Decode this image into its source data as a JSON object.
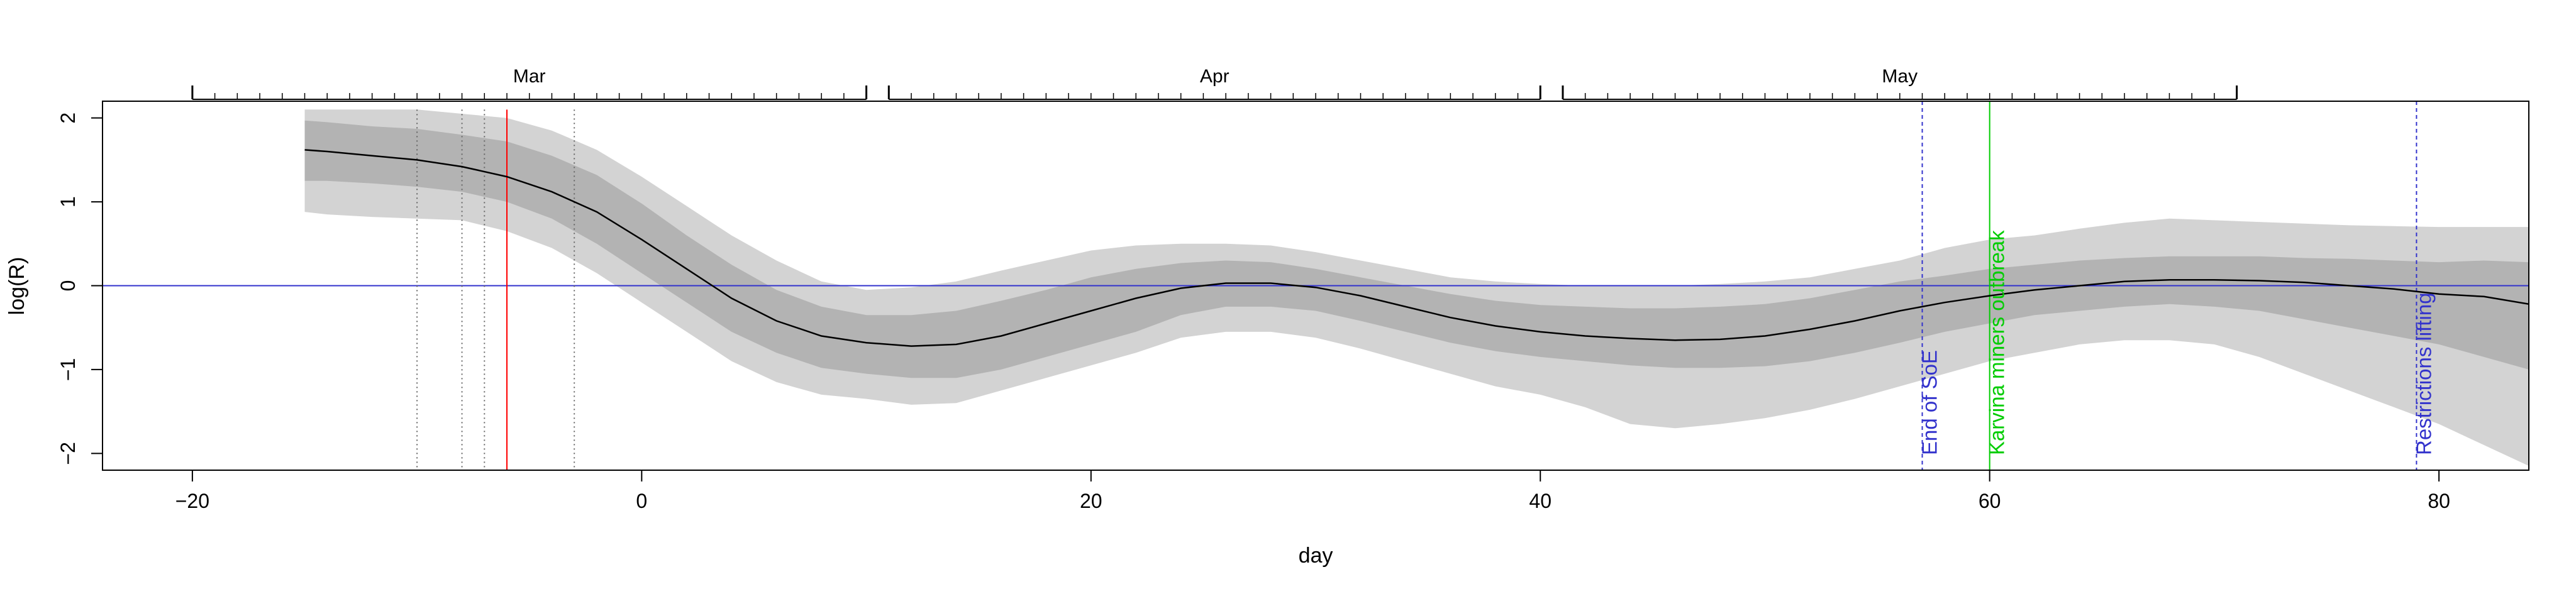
{
  "chart_data": {
    "type": "area",
    "xlabel": "day",
    "ylabel": "log(R)",
    "xlim": [
      -24,
      84
    ],
    "ylim": [
      -2.2,
      2.2
    ],
    "x_ticks": [
      -20,
      0,
      20,
      40,
      60,
      80
    ],
    "x_tick_labels": [
      "−20",
      "0",
      "20",
      "40",
      "60",
      "80"
    ],
    "y_ticks": [
      -2,
      -1,
      0,
      1,
      2
    ],
    "y_tick_labels": [
      "−2",
      "−1",
      "0",
      "1",
      "2"
    ],
    "top_axis": {
      "months": [
        {
          "label": "Mar",
          "start": -20,
          "end": 10
        },
        {
          "label": "Apr",
          "start": 11,
          "end": 40
        },
        {
          "label": "May",
          "start": 41,
          "end": 71
        }
      ]
    },
    "reference_line": {
      "y": 0,
      "color": "#3333cc"
    },
    "series": [
      {
        "x": [
          -15,
          -14,
          -12,
          -10,
          -8,
          -6,
          -4,
          -2,
          0,
          2,
          4,
          6,
          8,
          10,
          12,
          14,
          16,
          18,
          20,
          22,
          24,
          26,
          28,
          30,
          32,
          34,
          36,
          38,
          40,
          42,
          44,
          46,
          48,
          50,
          52,
          54,
          56,
          58,
          60,
          62,
          64,
          66,
          68,
          70,
          72,
          74,
          76,
          78,
          80,
          82,
          84
        ],
        "y": [
          1.62,
          1.6,
          1.55,
          1.5,
          1.42,
          1.3,
          1.12,
          0.88,
          0.55,
          0.2,
          -0.15,
          -0.42,
          -0.6,
          -0.68,
          -0.72,
          -0.7,
          -0.6,
          -0.45,
          -0.3,
          -0.15,
          -0.03,
          0.03,
          0.03,
          -0.02,
          -0.12,
          -0.25,
          -0.38,
          -0.48,
          -0.55,
          -0.6,
          -0.63,
          -0.65,
          -0.64,
          -0.6,
          -0.52,
          -0.42,
          -0.3,
          -0.2,
          -0.12,
          -0.05,
          0.0,
          0.05,
          0.07,
          0.07,
          0.06,
          0.04,
          0.0,
          -0.04,
          -0.1,
          -0.13,
          -0.22
        ],
        "inner_upper": [
          1.97,
          1.95,
          1.9,
          1.87,
          1.8,
          1.72,
          1.55,
          1.32,
          0.98,
          0.6,
          0.25,
          -0.05,
          -0.25,
          -0.35,
          -0.35,
          -0.3,
          -0.18,
          -0.05,
          0.1,
          0.2,
          0.27,
          0.3,
          0.28,
          0.2,
          0.1,
          0.0,
          -0.1,
          -0.18,
          -0.23,
          -0.25,
          -0.27,
          -0.27,
          -0.25,
          -0.22,
          -0.15,
          -0.05,
          0.05,
          0.12,
          0.2,
          0.25,
          0.3,
          0.33,
          0.35,
          0.35,
          0.35,
          0.33,
          0.32,
          0.3,
          0.28,
          0.3,
          0.28
        ],
        "inner_lower": [
          1.25,
          1.25,
          1.22,
          1.18,
          1.12,
          1.0,
          0.8,
          0.5,
          0.15,
          -0.2,
          -0.55,
          -0.8,
          -0.98,
          -1.05,
          -1.1,
          -1.1,
          -1.0,
          -0.85,
          -0.7,
          -0.55,
          -0.35,
          -0.25,
          -0.25,
          -0.3,
          -0.42,
          -0.55,
          -0.68,
          -0.78,
          -0.85,
          -0.9,
          -0.95,
          -0.98,
          -0.98,
          -0.96,
          -0.9,
          -0.8,
          -0.68,
          -0.55,
          -0.45,
          -0.35,
          -0.3,
          -0.25,
          -0.22,
          -0.25,
          -0.3,
          -0.4,
          -0.5,
          -0.6,
          -0.7,
          -0.85,
          -1.0
        ],
        "outer_upper": [
          2.1,
          2.1,
          2.1,
          2.1,
          2.05,
          2.0,
          1.85,
          1.62,
          1.3,
          0.95,
          0.6,
          0.3,
          0.05,
          -0.05,
          -0.02,
          0.05,
          0.18,
          0.3,
          0.42,
          0.48,
          0.5,
          0.5,
          0.48,
          0.4,
          0.3,
          0.2,
          0.1,
          0.05,
          0.02,
          0.0,
          0.0,
          0.0,
          0.02,
          0.05,
          0.1,
          0.2,
          0.3,
          0.45,
          0.55,
          0.6,
          0.68,
          0.75,
          0.8,
          0.78,
          0.76,
          0.74,
          0.72,
          0.71,
          0.7,
          0.7,
          0.7
        ],
        "outer_lower": [
          0.88,
          0.85,
          0.82,
          0.8,
          0.78,
          0.65,
          0.45,
          0.15,
          -0.2,
          -0.55,
          -0.9,
          -1.15,
          -1.3,
          -1.35,
          -1.42,
          -1.4,
          -1.25,
          -1.1,
          -0.95,
          -0.8,
          -0.62,
          -0.55,
          -0.55,
          -0.62,
          -0.75,
          -0.9,
          -1.05,
          -1.2,
          -1.3,
          -1.45,
          -1.65,
          -1.7,
          -1.65,
          -1.58,
          -1.48,
          -1.35,
          -1.2,
          -1.05,
          -0.9,
          -0.8,
          -0.7,
          -0.65,
          -0.65,
          -0.7,
          -0.85,
          -1.05,
          -1.25,
          -1.45,
          -1.65,
          -1.9,
          -2.15
        ]
      }
    ],
    "vertical_markers": [
      {
        "x": -10,
        "style": "dotted",
        "color": "#666666",
        "label": ""
      },
      {
        "x": -8,
        "style": "dotted",
        "color": "#666666",
        "label": ""
      },
      {
        "x": -7,
        "style": "dotted",
        "color": "#666666",
        "label": ""
      },
      {
        "x": -6,
        "style": "solid",
        "color": "#ff0000",
        "label": ""
      },
      {
        "x": -3,
        "style": "dotted",
        "color": "#666666",
        "label": ""
      },
      {
        "x": 57,
        "style": "dashed",
        "color": "#3333cc",
        "label": "End of SoE"
      },
      {
        "x": 60,
        "style": "solid",
        "color": "#00cc00",
        "label": "Karvina miners outbreak"
      },
      {
        "x": 79,
        "style": "dashed",
        "color": "#3333cc",
        "label": "Restrictions lifting"
      }
    ],
    "colors": {
      "outer_band": "#d3d3d3",
      "inner_band": "#b3b3b3",
      "line": "#000000"
    }
  }
}
